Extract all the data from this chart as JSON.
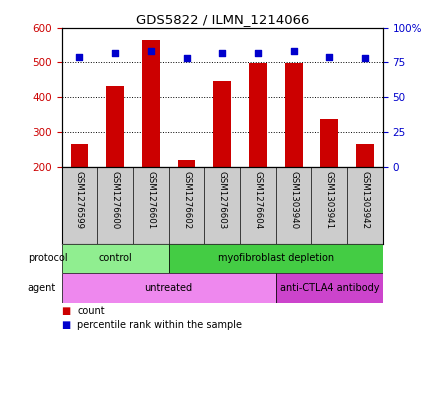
{
  "title": "GDS5822 / ILMN_1214066",
  "samples": [
    "GSM1276599",
    "GSM1276600",
    "GSM1276601",
    "GSM1276602",
    "GSM1276603",
    "GSM1276604",
    "GSM1303940",
    "GSM1303941",
    "GSM1303942"
  ],
  "counts": [
    265,
    433,
    563,
    220,
    447,
    498,
    497,
    338,
    267
  ],
  "percentiles": [
    79,
    82,
    83,
    78,
    82,
    82,
    83,
    79,
    78
  ],
  "ylim_left": [
    200,
    600
  ],
  "ylim_right": [
    0,
    100
  ],
  "yticks_left": [
    200,
    300,
    400,
    500,
    600
  ],
  "yticks_right": [
    0,
    25,
    50,
    75,
    100
  ],
  "ytick_labels_right": [
    "0",
    "25",
    "50",
    "75",
    "100%"
  ],
  "bar_color": "#cc0000",
  "dot_color": "#0000cc",
  "bar_width": 0.5,
  "protocol_groups": [
    {
      "label": "control",
      "start": 0,
      "end": 3,
      "color": "#90ee90"
    },
    {
      "label": "myofibroblast depletion",
      "start": 3,
      "end": 9,
      "color": "#44cc44"
    }
  ],
  "agent_groups": [
    {
      "label": "untreated",
      "start": 0,
      "end": 6,
      "color": "#ee88ee"
    },
    {
      "label": "anti-CTLA4 antibody",
      "start": 6,
      "end": 9,
      "color": "#cc44cc"
    }
  ],
  "legend_count_label": "count",
  "legend_pct_label": "percentile rank within the sample",
  "bg_color": "#cccccc",
  "left_label_color": "#cc0000",
  "right_label_color": "#0000cc"
}
